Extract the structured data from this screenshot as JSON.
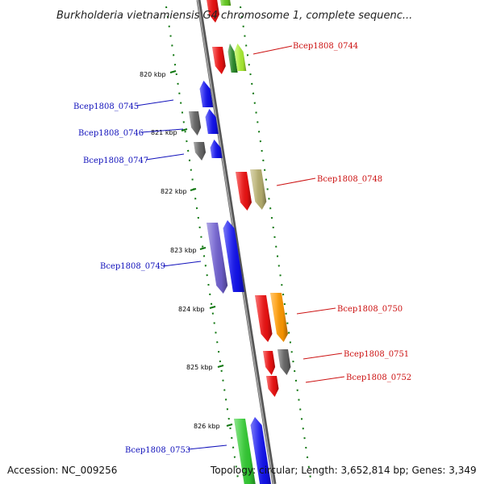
{
  "title": "Burkholderia vietnamiensis G4 chromosome 1, complete sequenc...",
  "footer": {
    "accession": "Accession: NC_009256",
    "topology": "Topology: circular; Length: 3,652,814 bp; Genes: 3,349"
  },
  "scale_ticks": [
    "820 kbp",
    "821 kbp",
    "822 kbp",
    "823 kbp",
    "824 kbp",
    "825 kbp",
    "826 kbp"
  ],
  "genes": [
    {
      "id": "top-red",
      "label": "",
      "strand": "minus",
      "color": "#ee1111"
    },
    {
      "id": "top-green",
      "label": "",
      "strand": "plus",
      "color": "#66cc22"
    },
    {
      "id": "Bcep1808_0744",
      "label": "Bcep1808_0744",
      "strand": "minus",
      "color": "#ee1111"
    },
    {
      "id": "0744-darkgreen",
      "label": "",
      "strand": "plus",
      "color": "#2a8a2a"
    },
    {
      "id": "0744-lime",
      "label": "",
      "strand": "plus",
      "color": "#aaee33"
    },
    {
      "id": "Bcep1808_0745",
      "label": "Bcep1808_0745",
      "strand": "plus",
      "color": "#1111ee"
    },
    {
      "id": "Bcep1808_0746",
      "label": "Bcep1808_0746",
      "strand": "plus",
      "color": "#1111ee"
    },
    {
      "id": "0746-gray",
      "label": "",
      "strand": "minus",
      "color": "#666666"
    },
    {
      "id": "Bcep1808_0747",
      "label": "Bcep1808_0747",
      "strand": "plus",
      "color": "#1111ee"
    },
    {
      "id": "0747-gray",
      "label": "",
      "strand": "minus",
      "color": "#666666"
    },
    {
      "id": "Bcep1808_0748",
      "label": "Bcep1808_0748",
      "strand": "minus",
      "color": "#ee1111"
    },
    {
      "id": "0748-khaki",
      "label": "",
      "strand": "minus",
      "color": "#b8b070"
    },
    {
      "id": "Bcep1808_0749",
      "label": "Bcep1808_0749",
      "strand": "plus",
      "color": "#1111ee"
    },
    {
      "id": "0749-purple",
      "label": "",
      "strand": "minus",
      "color": "#7060d0"
    },
    {
      "id": "Bcep1808_0750",
      "label": "Bcep1808_0750",
      "strand": "minus",
      "color": "#ee1111"
    },
    {
      "id": "0750-orange",
      "label": "",
      "strand": "minus",
      "color": "#ff9900"
    },
    {
      "id": "Bcep1808_0751",
      "label": "Bcep1808_0751",
      "strand": "minus",
      "color": "#ee1111"
    },
    {
      "id": "0751-gray",
      "label": "",
      "strand": "minus",
      "color": "#666666"
    },
    {
      "id": "Bcep1808_0752",
      "label": "Bcep1808_0752",
      "strand": "minus",
      "color": "#ee1111"
    },
    {
      "id": "Bcep1808_0753",
      "label": "Bcep1808_0753",
      "strand": "minus",
      "color": "#33cc33"
    },
    {
      "id": "0753-blue",
      "label": "",
      "strand": "plus",
      "color": "#1111ee"
    }
  ],
  "colors": {
    "backbone": "#888888",
    "scale_dash": "#117711",
    "plus_label": "#1111bb",
    "minus_label": "#cc1111"
  }
}
